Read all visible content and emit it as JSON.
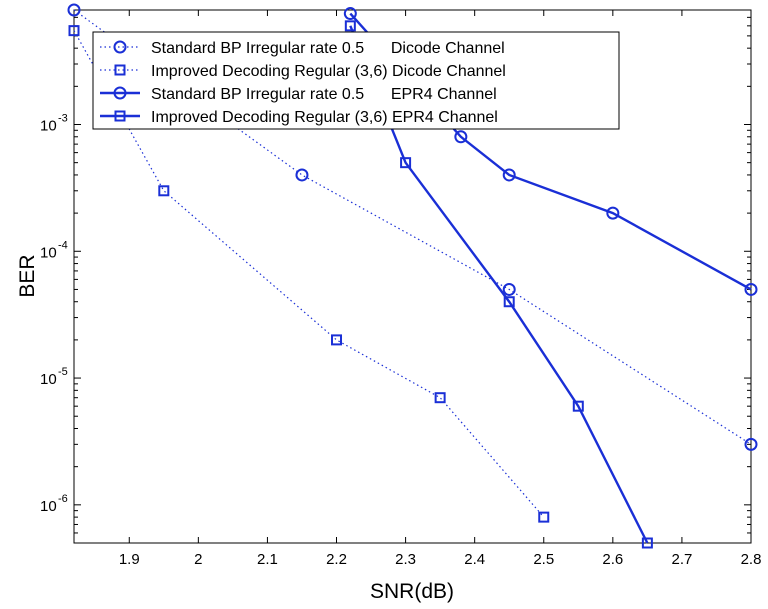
{
  "chart_data": {
    "type": "line",
    "title": "",
    "xlabel": "SNR(dB)",
    "ylabel": "BER",
    "xlim": [
      1.82,
      2.8
    ],
    "ylim": [
      5e-07,
      0.008
    ],
    "yscale": "log",
    "grid": false,
    "legend_position": "top",
    "x_ticks": [
      1.9,
      2.0,
      2.1,
      2.2,
      2.3,
      2.4,
      2.5,
      2.6,
      2.7,
      2.8
    ],
    "x_tick_labels": [
      "1.9",
      "2",
      "2.1",
      "2.2",
      "2.3",
      "2.4",
      "2.5",
      "2.6",
      "2.7",
      "2.8"
    ],
    "y_ticks": [
      {
        "value": 0.001,
        "base": "10",
        "exp": "-3"
      },
      {
        "value": 0.0001,
        "base": "10",
        "exp": "-4"
      },
      {
        "value": 1e-05,
        "base": "10",
        "exp": "-5"
      },
      {
        "value": 1e-06,
        "base": "10",
        "exp": "-6"
      }
    ],
    "series": [
      {
        "name": "Standard BP Irregular rate 0.5      Dicode Channel",
        "marker": "circle",
        "line": "dotted",
        "color": "#1a2fd6",
        "x": [
          1.82,
          2.15,
          2.45,
          2.8
        ],
        "y": [
          0.008,
          0.0004,
          5e-05,
          3e-06
        ]
      },
      {
        "name": "Improved Decoding Regular (3,6) Dicode Channel",
        "marker": "square",
        "line": "dotted",
        "color": "#1a2fd6",
        "x": [
          1.82,
          1.95,
          2.2,
          2.35,
          2.5
        ],
        "y": [
          0.0055,
          0.0003,
          2e-05,
          7e-06,
          8e-07
        ]
      },
      {
        "name": "Standard BP Irregular rate 0.5      EPR4 Channel",
        "marker": "circle",
        "line": "solid",
        "color": "#1a2fd6",
        "x": [
          2.22,
          2.38,
          2.45,
          2.6,
          2.8
        ],
        "y": [
          0.0075,
          0.0008,
          0.0004,
          0.0002,
          5e-05
        ]
      },
      {
        "name": "Improved Decoding Regular (3,6) EPR4 Channel",
        "marker": "square",
        "line": "solid",
        "color": "#1a2fd6",
        "x": [
          2.22,
          2.3,
          2.45,
          2.55,
          2.65
        ],
        "y": [
          0.006,
          0.0005,
          4e-05,
          6e-06,
          5e-07
        ]
      }
    ]
  }
}
